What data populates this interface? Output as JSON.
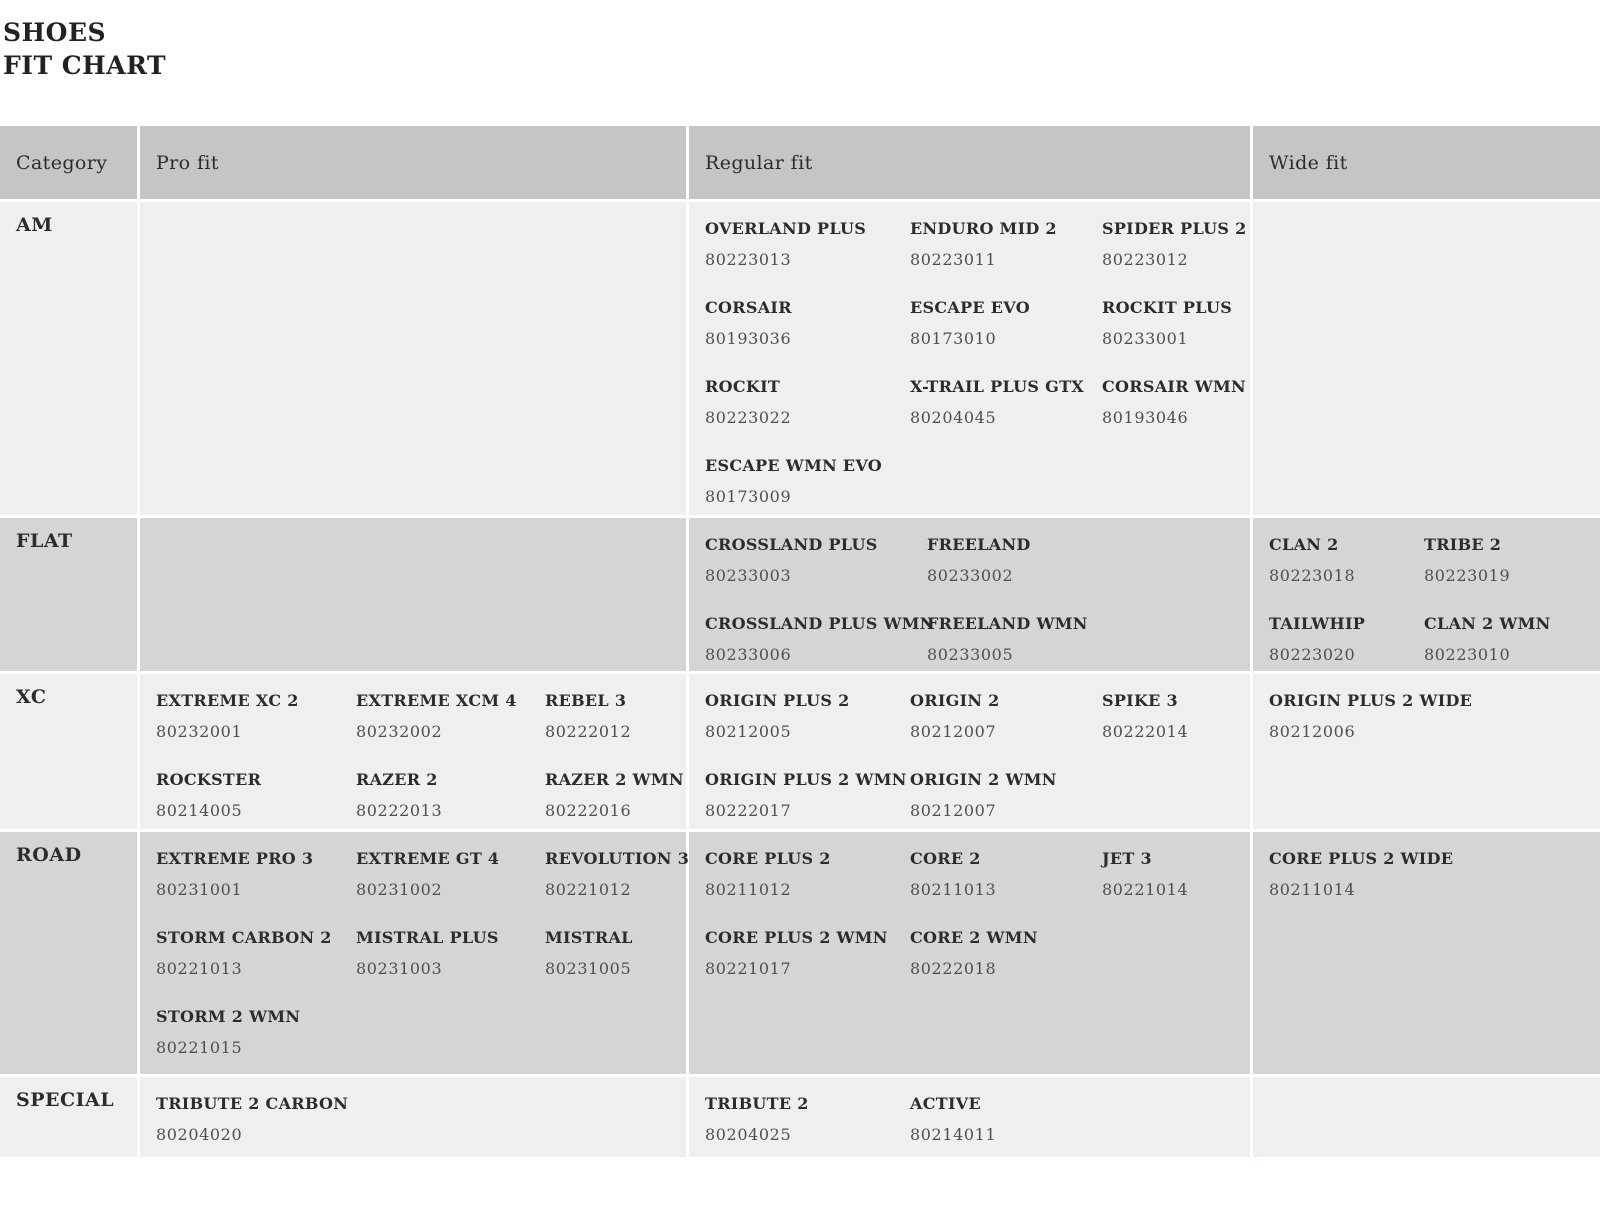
{
  "title": {
    "line1": "SHOES",
    "line2": "FIT CHART"
  },
  "table": {
    "columns": [
      "Category",
      "Pro fit",
      "Regular fit",
      "Wide fit"
    ],
    "rows": [
      {
        "category": "AM",
        "pro": [],
        "regular": [
          {
            "name": "OVERLAND PLUS",
            "code": "80223013"
          },
          {
            "name": "ENDURO MID 2",
            "code": "80223011"
          },
          {
            "name": "SPIDER PLUS 2",
            "code": "80223012"
          },
          {
            "name": "CORSAIR",
            "code": "80193036"
          },
          {
            "name": "ESCAPE EVO",
            "code": "80173010"
          },
          {
            "name": "ROCKIT PLUS",
            "code": "80233001"
          },
          {
            "name": "ROCKIT",
            "code": "80223022"
          },
          {
            "name": "X-TRAIL PLUS GTX",
            "code": "80204045"
          },
          {
            "name": "CORSAIR WMN",
            "code": "80193046"
          },
          {
            "name": "ESCAPE WMN EVO",
            "code": "80173009"
          }
        ],
        "wide": []
      },
      {
        "category": "FLAT",
        "pro": [],
        "regular": [
          {
            "name": "CROSSLAND PLUS",
            "code": "80233003"
          },
          {
            "name": "FREELAND",
            "code": "80233002"
          },
          {
            "name": "CROSSLAND PLUS WMN",
            "code": "80233006"
          },
          {
            "name": "FREELAND WMN",
            "code": "80233005"
          }
        ],
        "wide": [
          {
            "name": "CLAN 2",
            "code": "80223018"
          },
          {
            "name": "TRIBE 2",
            "code": "80223019"
          },
          {
            "name": "TAILWHIP",
            "code": "80223020"
          },
          {
            "name": "CLAN 2 WMN",
            "code": "80223010"
          }
        ]
      },
      {
        "category": "XC",
        "pro": [
          {
            "name": "EXTREME XC 2",
            "code": "80232001"
          },
          {
            "name": "EXTREME XCM 4",
            "code": "80232002"
          },
          {
            "name": "REBEL 3",
            "code": "80222012"
          },
          {
            "name": "ROCKSTER",
            "code": "80214005"
          },
          {
            "name": "RAZER 2",
            "code": "80222013"
          },
          {
            "name": "RAZER 2 WMN",
            "code": "80222016"
          }
        ],
        "regular": [
          {
            "name": "ORIGIN PLUS 2",
            "code": "80212005"
          },
          {
            "name": "ORIGIN 2",
            "code": "80212007"
          },
          {
            "name": "SPIKE 3",
            "code": "80222014"
          },
          {
            "name": "ORIGIN PLUS 2 WMN",
            "code": "80222017"
          },
          {
            "name": "ORIGIN 2 WMN",
            "code": "80212007"
          }
        ],
        "wide": [
          {
            "name": "ORIGIN PLUS 2 WIDE",
            "code": "80212006"
          }
        ]
      },
      {
        "category": "ROAD",
        "pro": [
          {
            "name": "EXTREME PRO 3",
            "code": "80231001"
          },
          {
            "name": "EXTREME GT 4",
            "code": "80231002"
          },
          {
            "name": "REVOLUTION 3",
            "code": "80221012"
          },
          {
            "name": "STORM CARBON 2",
            "code": "80221013"
          },
          {
            "name": "MISTRAL PLUS",
            "code": "80231003"
          },
          {
            "name": "MISTRAL",
            "code": "80231005"
          },
          {
            "name": "STORM 2 WMN",
            "code": "80221015"
          }
        ],
        "regular": [
          {
            "name": "CORE PLUS 2",
            "code": "80211012"
          },
          {
            "name": "CORE 2",
            "code": "80211013"
          },
          {
            "name": "JET 3",
            "code": "80221014"
          },
          {
            "name": "CORE PLUS 2 WMN",
            "code": "80221017"
          },
          {
            "name": "CORE 2 WMN",
            "code": "80222018"
          }
        ],
        "wide": [
          {
            "name": "CORE PLUS 2 WIDE",
            "code": "80211014"
          }
        ]
      },
      {
        "category": "SPECIAL",
        "pro": [
          {
            "name": "TRIBUTE 2 CARBON",
            "code": "80204020"
          }
        ],
        "regular": [
          {
            "name": "TRIBUTE 2",
            "code": "80204025"
          },
          {
            "name": "ACTIVE",
            "code": "80214011"
          }
        ],
        "wide": []
      }
    ]
  },
  "colors": {
    "header_bg": "#c6c5c4",
    "row_light": "#f0efee",
    "row_dark": "#d7d5d4",
    "name": "#2d2c2a",
    "code": "#514f4d",
    "title": "#232221"
  }
}
